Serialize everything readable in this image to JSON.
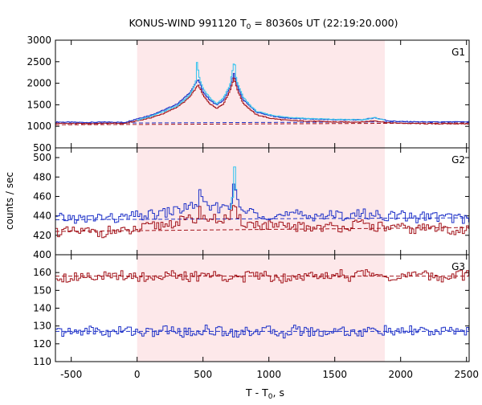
{
  "chart_data": {
    "type": "line",
    "title_main": "KONUS-WIND 991120 T",
    "title_sub": "0",
    "title_rest": " = 80360s UT (22:19:20.000)",
    "xlabel_main": "T - T",
    "xlabel_sub": "0",
    "xlabel_rest": ", s",
    "ylabel": "counts / sec",
    "xlim": [
      -620,
      2520
    ],
    "x_ticks": [
      -500,
      0,
      500,
      1000,
      1500,
      2000,
      2500
    ],
    "x_tick_labels": [
      "-500",
      "0",
      "500",
      "1000",
      "1500",
      "2000",
      "2500"
    ],
    "highlight_interval": [
      0,
      1880
    ],
    "colors": {
      "highlight": "#fde8ea",
      "blue": "#1f32c8",
      "red": "#a3141b",
      "cyan": "#3ec5ee",
      "magenta": "#e05fc0",
      "grid_dash": "#b01020"
    },
    "panels": [
      {
        "name": "G1",
        "ylim": [
          500,
          3000
        ],
        "y_ticks": [
          500,
          1000,
          1500,
          2000,
          2500,
          3000
        ],
        "y_tick_labels": [
          "500",
          "1000",
          "1500",
          "2000",
          "2500",
          "3000"
        ],
        "background_levels": [
          {
            "series": "red",
            "x": [
              -620,
              2520
            ],
            "y": [
              1035,
              1078
            ]
          },
          {
            "series": "blue",
            "x": [
              -620,
              2520
            ],
            "y": [
              1070,
              1110
            ]
          }
        ],
        "series": [
          {
            "color": "blue",
            "x": [
              -620,
              -500,
              -400,
              -300,
              -200,
              -100,
              0,
              100,
              200,
              300,
              350,
              400,
              440,
              460,
              500,
              550,
              600,
              650,
              700,
              730,
              760,
              800,
              850,
              900,
              1000,
              1100,
              1200,
              1300,
              1400,
              1500,
              1600,
              1700,
              1800,
              1900,
              2000,
              2100,
              2200,
              2300,
              2400,
              2520
            ],
            "y": [
              1100,
              1095,
              1090,
              1095,
              1100,
              1090,
              1180,
              1260,
              1380,
              1520,
              1650,
              1800,
              2000,
              2080,
              1780,
              1600,
              1500,
              1600,
              1900,
              2220,
              1900,
              1620,
              1480,
              1330,
              1250,
              1200,
              1180,
              1170,
              1160,
              1150,
              1150,
              1150,
              1200,
              1130,
              1110,
              1105,
              1100,
              1095,
              1100,
              1100
            ]
          },
          {
            "color": "red",
            "x": [
              -620,
              -500,
              -400,
              -300,
              -200,
              -100,
              0,
              100,
              200,
              300,
              350,
              400,
              440,
              460,
              500,
              550,
              600,
              650,
              700,
              730,
              760,
              800,
              850,
              900,
              1000,
              1100,
              1200,
              1300,
              1400,
              1500,
              1600,
              1700,
              1800,
              1900,
              2000,
              2100,
              2200,
              2300,
              2400,
              2520
            ],
            "y": [
              1070,
              1065,
              1060,
              1065,
              1070,
              1065,
              1130,
              1200,
              1300,
              1450,
              1560,
              1700,
              1880,
              1960,
              1700,
              1520,
              1420,
              1520,
              1820,
              2120,
              1820,
              1540,
              1400,
              1270,
              1190,
              1150,
              1130,
              1120,
              1110,
              1100,
              1100,
              1100,
              1130,
              1080,
              1070,
              1065,
              1060,
              1058,
              1060,
              1060
            ]
          },
          {
            "color": "cyan",
            "x": [
              0,
              100,
              200,
              300,
              350,
              400,
              440,
              450,
              470,
              500,
              550,
              600,
              650,
              700,
              720,
              735,
              750,
              800,
              850,
              900,
              1000,
              1100,
              1200,
              1300,
              1400,
              1500,
              1600,
              1700,
              1800,
              1880
            ],
            "y": [
              1150,
              1230,
              1350,
              1480,
              1600,
              1750,
              2000,
              2480,
              2100,
              1850,
              1650,
              1520,
              1650,
              1950,
              2300,
              2530,
              2050,
              1680,
              1500,
              1350,
              1270,
              1220,
              1200,
              1180,
              1170,
              1160,
              1155,
              1150,
              1200,
              1140
            ]
          }
        ]
      },
      {
        "name": "G2",
        "ylim": [
          400,
          510
        ],
        "y_ticks": [
          400,
          420,
          440,
          460,
          480,
          500
        ],
        "y_tick_labels": [
          "400",
          "420",
          "440",
          "460",
          "480",
          "500"
        ],
        "background_levels": [
          {
            "series": "red",
            "x": [
              -620,
              2520
            ],
            "y": [
              424,
              428
            ]
          },
          {
            "series": "blue",
            "x": [
              -620,
              2520
            ],
            "y": [
              436,
              438
            ]
          }
        ],
        "series": [
          {
            "color": "blue",
            "x": [
              -620,
              -500,
              -400,
              -300,
              -200,
              -100,
              0,
              100,
              200,
              300,
              400,
              450,
              470,
              500,
              600,
              700,
              730,
              760,
              800,
              900,
              1000,
              1100,
              1200,
              1300,
              1400,
              1500,
              1600,
              1700,
              1800,
              1900,
              2000,
              2100,
              2200,
              2300,
              2400,
              2520
            ],
            "y": [
              437,
              438,
              436,
              439,
              437,
              438,
              440,
              441,
              443,
              446,
              450,
              452,
              464,
              450,
              448,
              452,
              472,
              450,
              445,
              443,
              441,
              440,
              441,
              440,
              441,
              440,
              441,
              442,
              441,
              440,
              440,
              438,
              440,
              439,
              438,
              437
            ]
          },
          {
            "color": "red",
            "x": [
              -620,
              -500,
              -400,
              -300,
              -200,
              -100,
              0,
              100,
              200,
              300,
              400,
              450,
              470,
              500,
              600,
              700,
              730,
              760,
              800,
              900,
              1000,
              1100,
              1200,
              1300,
              1400,
              1500,
              1600,
              1700,
              1800,
              1900,
              2000,
              2100,
              2200,
              2300,
              2400,
              2520
            ],
            "y": [
              424,
              423,
              424,
              422,
              425,
              423,
              426,
              429,
              431,
              434,
              436,
              437,
              446,
              438,
              436,
              438,
              448,
              437,
              433,
              431,
              430,
              428,
              429,
              428,
              429,
              428,
              430,
              431,
              429,
              428,
              427,
              426,
              428,
              427,
              426,
              425
            ]
          },
          {
            "color": "cyan",
            "x": [
              700,
              720,
              730,
              740,
              760
            ],
            "y": [
              448,
              465,
              495,
              470,
              450
            ]
          }
        ]
      },
      {
        "name": "G3",
        "ylim": [
          110,
          170
        ],
        "y_ticks": [
          110,
          120,
          130,
          140,
          150,
          160
        ],
        "y_tick_labels": [
          "110",
          "120",
          "130",
          "140",
          "150",
          "160"
        ],
        "background_levels": [
          {
            "series": "red",
            "x": [
              -620,
              2520
            ],
            "y": [
              158,
              158
            ]
          },
          {
            "series": "blue",
            "x": [
              -620,
              2520
            ],
            "y": [
              127,
              127
            ]
          }
        ],
        "series": [
          {
            "color": "red",
            "x": [
              -620,
              -500,
              -400,
              -300,
              -200,
              -100,
              0,
              100,
              200,
              300,
              400,
              500,
              600,
              700,
              800,
              900,
              1000,
              1100,
              1200,
              1300,
              1400,
              1500,
              1600,
              1700,
              1800,
              1900,
              2000,
              2100,
              2200,
              2300,
              2400,
              2520
            ],
            "y": [
              158,
              157,
              159,
              158,
              157,
              159,
              158,
              157,
              159,
              158,
              157,
              159,
              158,
              158,
              157,
              159,
              158,
              157,
              159,
              158,
              157,
              160,
              158,
              159,
              160,
              158,
              157,
              159,
              158,
              157,
              159,
              158
            ]
          },
          {
            "color": "blue",
            "x": [
              -620,
              -500,
              -400,
              -300,
              -200,
              -100,
              0,
              100,
              200,
              300,
              400,
              500,
              600,
              700,
              800,
              900,
              1000,
              1100,
              1200,
              1300,
              1400,
              1500,
              1600,
              1700,
              1800,
              1900,
              2000,
              2100,
              2200,
              2300,
              2400,
              2520
            ],
            "y": [
              127,
              126,
              128,
              127,
              126,
              128,
              127,
              126,
              128,
              127,
              126,
              128,
              127,
              127,
              126,
              128,
              127,
              126,
              128,
              127,
              126,
              128,
              127,
              126,
              128,
              127,
              126,
              128,
              127,
              126,
              128,
              127
            ]
          }
        ]
      }
    ]
  }
}
